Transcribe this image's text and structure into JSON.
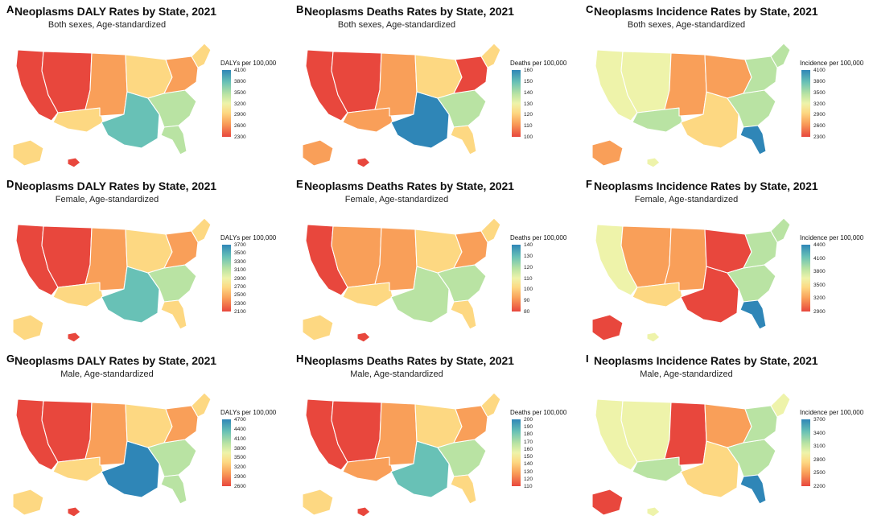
{
  "colors": {
    "low": "#e8473d",
    "mid_low": "#f99f59",
    "mid": "#fdd882",
    "neutral": "#eef3aa",
    "mid_high": "#b9e3a3",
    "high": "#68c1b6",
    "top": "#2f86b7"
  },
  "panels": [
    {
      "letter": "A",
      "title": "Neoplasms DALY Rates by State, 2021",
      "subtitle": "Both sexes, Age-standardized",
      "legend_title": "DALYs per 100,000",
      "ticks": [
        "4100",
        "3800",
        "3500",
        "3200",
        "2900",
        "2600",
        "2300"
      ],
      "tones": {
        "west_coast": "low",
        "mountain": "low",
        "great_plains": "mid_low",
        "southwest": "mid",
        "midwest": "mid",
        "south": "high",
        "southeast": "mid_high",
        "northeast": "mid_low",
        "new_england": "mid",
        "florida": "mid_high",
        "alaska": "mid",
        "hawaii": "low"
      }
    },
    {
      "letter": "B",
      "title": "Neoplasms Deaths Rates by State, 2021",
      "subtitle": "Both sexes, Age-standardized",
      "legend_title": "Deaths per 100,000",
      "ticks": [
        "160",
        "150",
        "140",
        "130",
        "120",
        "110",
        "100"
      ],
      "tones": {
        "west_coast": "low",
        "mountain": "low",
        "great_plains": "mid_low",
        "southwest": "mid_low",
        "midwest": "mid",
        "south": "top",
        "southeast": "mid_high",
        "northeast": "low",
        "new_england": "mid",
        "florida": "mid",
        "alaska": "mid_low",
        "hawaii": "low"
      }
    },
    {
      "letter": "C",
      "title": "Neoplasms Incidence Rates by State, 2021",
      "subtitle": "Both sexes, Age-standardized",
      "legend_title": "Incidence per 100,000",
      "ticks": [
        "4100",
        "3800",
        "3500",
        "3200",
        "2900",
        "2600",
        "2300"
      ],
      "tones": {
        "west_coast": "neutral",
        "mountain": "neutral",
        "great_plains": "mid_low",
        "southwest": "mid_high",
        "midwest": "mid_low",
        "south": "mid",
        "southeast": "mid_high",
        "northeast": "mid_high",
        "new_england": "mid_high",
        "florida": "top",
        "alaska": "mid_low",
        "hawaii": "neutral"
      }
    },
    {
      "letter": "D",
      "title": "Neoplasms DALY Rates by State, 2021",
      "subtitle": "Female, Age-standardized",
      "legend_title": "DALYs per 100,000",
      "ticks": [
        "3700",
        "3500",
        "3300",
        "3100",
        "2900",
        "2700",
        "2500",
        "2300",
        "2100"
      ],
      "tones": {
        "west_coast": "low",
        "mountain": "low",
        "great_plains": "mid_low",
        "southwest": "mid",
        "midwest": "mid",
        "south": "high",
        "southeast": "mid_high",
        "northeast": "mid_low",
        "new_england": "mid",
        "florida": "mid",
        "alaska": "mid",
        "hawaii": "low"
      }
    },
    {
      "letter": "E",
      "title": "Neoplasms Deaths Rates by State, 2021",
      "subtitle": "Female, Age-standardized",
      "legend_title": "Deaths per 100,000",
      "ticks": [
        "140",
        "130",
        "120",
        "110",
        "100",
        "90",
        "80"
      ],
      "tones": {
        "west_coast": "low",
        "mountain": "mid_low",
        "great_plains": "mid_low",
        "southwest": "mid",
        "midwest": "mid",
        "south": "mid_high",
        "southeast": "mid_high",
        "northeast": "mid_low",
        "new_england": "mid",
        "florida": "mid",
        "alaska": "mid",
        "hawaii": "low"
      }
    },
    {
      "letter": "F",
      "title": "Neoplasms Incidence Rates by State, 2021",
      "subtitle": "Female, Age-standardized",
      "legend_title": "Incidence per 100,000",
      "ticks": [
        "4400",
        "4100",
        "3800",
        "3500",
        "3200",
        "2900"
      ],
      "tones": {
        "west_coast": "neutral",
        "mountain": "mid_low",
        "great_plains": "mid_low",
        "southwest": "mid",
        "midwest": "low",
        "south": "low",
        "southeast": "mid_high",
        "northeast": "mid_high",
        "new_england": "mid_high",
        "florida": "top",
        "alaska": "low",
        "hawaii": "neutral"
      }
    },
    {
      "letter": "G",
      "title": "Neoplasms DALY Rates by State, 2021",
      "subtitle": "Male, Age-standardized",
      "legend_title": "DALYs per 100,000",
      "ticks": [
        "4700",
        "4400",
        "4100",
        "3800",
        "3500",
        "3200",
        "2900",
        "2600"
      ],
      "tones": {
        "west_coast": "low",
        "mountain": "low",
        "great_plains": "mid_low",
        "southwest": "mid",
        "midwest": "mid",
        "south": "top",
        "southeast": "mid_high",
        "northeast": "mid_low",
        "new_england": "mid",
        "florida": "mid_high",
        "alaska": "mid",
        "hawaii": "low"
      }
    },
    {
      "letter": "H",
      "title": "Neoplasms Deaths Rates by State, 2021",
      "subtitle": "Male, Age-standardized",
      "legend_title": "Deaths per 100,000",
      "ticks": [
        "200",
        "190",
        "180",
        "170",
        "160",
        "150",
        "140",
        "130",
        "120",
        "110"
      ],
      "tones": {
        "west_coast": "low",
        "mountain": "low",
        "great_plains": "mid_low",
        "southwest": "mid_low",
        "midwest": "mid",
        "south": "high",
        "southeast": "mid_high",
        "northeast": "mid_low",
        "new_england": "mid",
        "florida": "mid",
        "alaska": "mid",
        "hawaii": "low"
      }
    },
    {
      "letter": "I",
      "title": "Neoplasms Incidence Rates by State, 2021",
      "subtitle": "Male, Age-standardized",
      "legend_title": "Incidence per 100,000",
      "ticks": [
        "3700",
        "3400",
        "3100",
        "2800",
        "2500",
        "2200"
      ],
      "tones": {
        "west_coast": "neutral",
        "mountain": "neutral",
        "great_plains": "low",
        "southwest": "mid_high",
        "midwest": "mid_low",
        "south": "mid",
        "southeast": "mid_high",
        "northeast": "mid_high",
        "new_england": "neutral",
        "florida": "top",
        "alaska": "low",
        "hawaii": "neutral"
      }
    }
  ]
}
